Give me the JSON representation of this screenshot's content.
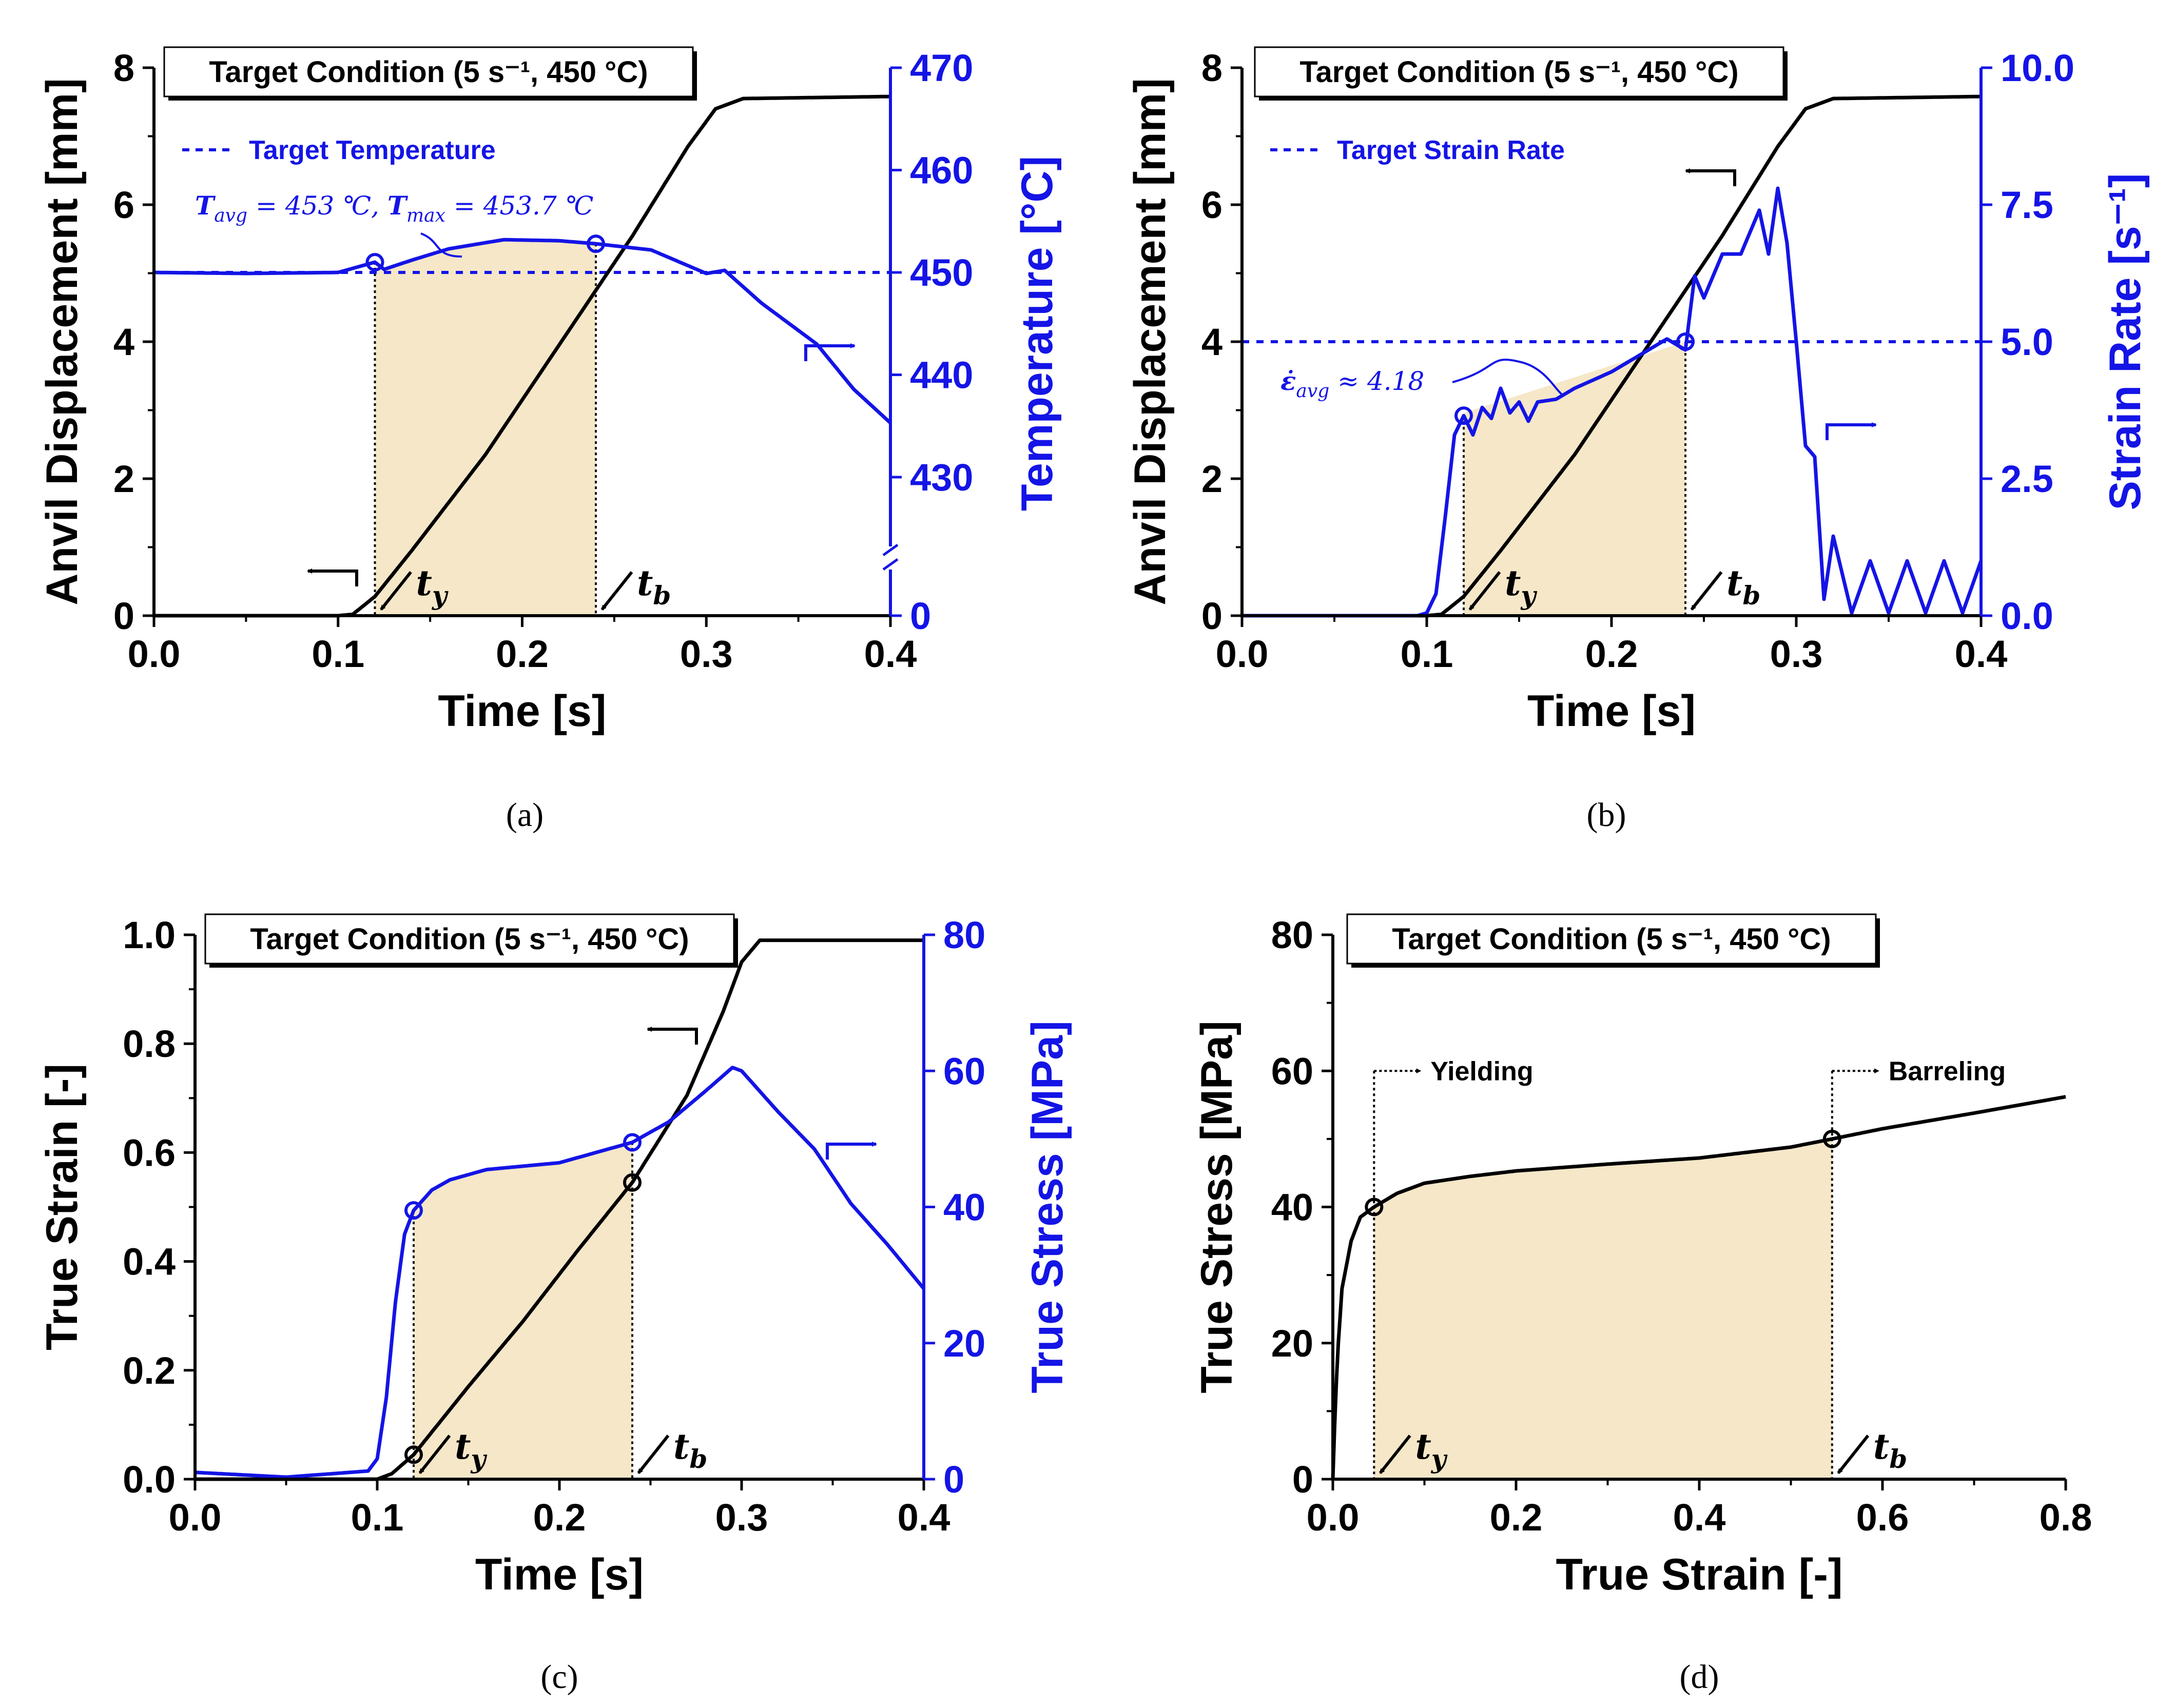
{
  "figure": {
    "colors": {
      "black": "#000000",
      "blue": "#1414e6",
      "shade": "#f5e7c8"
    }
  },
  "chart_data": [
    {
      "id": "a",
      "type": "line",
      "caption": "(a)",
      "title": "Target Condition (5 s⁻¹, 450 °C)",
      "xlabel": "Time [s]",
      "ylabel": "Anvil Displacement [mm]",
      "y2label": "Temperature [°C]",
      "xlim": [
        0,
        0.4
      ],
      "ylim": [
        0,
        8
      ],
      "xticks": [
        "0.0",
        "0.1",
        "0.2",
        "0.3",
        "0.4"
      ],
      "yticks": [
        "0",
        "2",
        "4",
        "6",
        "8"
      ],
      "y2ticks": [
        "0",
        "430",
        "440",
        "450",
        "460",
        "470"
      ],
      "y2_break": true,
      "legend": "Target Temperature",
      "target_y2": 450,
      "annotation": "T_avg = 453 ℃,  T_max = 453.7 ℃",
      "annotation_parts": {
        "t1": "T",
        "s1": "avg",
        "v1": " = 453 ℃, ",
        "t2": "T",
        "s2": "max",
        "v2": " = 453.7 ℃"
      },
      "markers": {
        "ty_label": "t",
        "ty_sub": "y",
        "tb_label": "t",
        "tb_sub": "b",
        "ty": 0.12,
        "tb": 0.24
      },
      "series": [
        {
          "name": "Anvil Displacement",
          "axis": "y",
          "color": "black",
          "x": [
            0,
            0.1,
            0.108,
            0.12,
            0.14,
            0.18,
            0.22,
            0.26,
            0.29,
            0.305,
            0.32,
            0.4
          ],
          "y": [
            0,
            0,
            0.02,
            0.28,
            0.95,
            2.35,
            3.95,
            5.55,
            6.85,
            7.4,
            7.55,
            7.58
          ]
        },
        {
          "name": "Temperature",
          "axis": "y2",
          "color": "blue",
          "x": [
            0,
            0.05,
            0.1,
            0.12,
            0.125,
            0.14,
            0.16,
            0.19,
            0.22,
            0.24,
            0.27,
            0.3,
            0.31,
            0.33,
            0.36,
            0.38,
            0.4
          ],
          "y": [
            450,
            449.9,
            450,
            451,
            450.3,
            451.2,
            452.3,
            453.2,
            453.1,
            452.8,
            452.2,
            449.9,
            450.2,
            447,
            443,
            438.6,
            435.3
          ]
        }
      ]
    },
    {
      "id": "b",
      "type": "line",
      "caption": "(b)",
      "title": "Target Condition (5 s⁻¹, 450 °C)",
      "xlabel": "Time [s]",
      "ylabel": "Anvil Displacement [mm]",
      "y2label": "Strain Rate [s⁻¹]",
      "xlim": [
        0,
        0.4
      ],
      "ylim": [
        0,
        8
      ],
      "y2lim": [
        0,
        10
      ],
      "xticks": [
        "0.0",
        "0.1",
        "0.2",
        "0.3",
        "0.4"
      ],
      "yticks": [
        "0",
        "2",
        "4",
        "6",
        "8"
      ],
      "y2ticks": [
        "0.0",
        "2.5",
        "5.0",
        "7.5",
        "10.0"
      ],
      "legend": "Target Strain Rate",
      "target_y2": 5.0,
      "annotation": "ε̇_avg ≈ 4.18",
      "annotation_parts": {
        "t1": "ε̇",
        "s1": "avg",
        "v1": " ≈ 4.18"
      },
      "markers": {
        "ty_label": "t",
        "ty_sub": "y",
        "tb_label": "t",
        "tb_sub": "b",
        "ty": 0.12,
        "tb": 0.24
      },
      "series": [
        {
          "name": "Anvil Displacement",
          "axis": "y",
          "color": "black",
          "x": [
            0,
            0.1,
            0.108,
            0.12,
            0.14,
            0.18,
            0.22,
            0.26,
            0.29,
            0.305,
            0.32,
            0.4
          ],
          "y": [
            0,
            0,
            0.02,
            0.28,
            0.95,
            2.35,
            3.95,
            5.55,
            6.85,
            7.4,
            7.55,
            7.58
          ]
        },
        {
          "name": "Strain Rate",
          "axis": "y2",
          "color": "blue",
          "x": [
            0,
            0.095,
            0.1,
            0.105,
            0.11,
            0.115,
            0.12,
            0.125,
            0.13,
            0.135,
            0.14,
            0.145,
            0.15,
            0.155,
            0.16,
            0.17,
            0.18,
            0.19,
            0.2,
            0.21,
            0.22,
            0.23,
            0.24,
            0.245,
            0.25,
            0.26,
            0.27,
            0.28,
            0.285,
            0.29,
            0.295,
            0.3,
            0.305,
            0.31,
            0.315,
            0.32,
            0.33,
            0.34,
            0.35,
            0.36,
            0.37,
            0.38,
            0.39,
            0.4
          ],
          "y": [
            0,
            0,
            0.05,
            0.4,
            1.8,
            3.3,
            3.65,
            3.3,
            3.8,
            3.6,
            4.15,
            3.7,
            3.9,
            3.55,
            3.9,
            3.95,
            4.15,
            4.3,
            4.45,
            4.65,
            4.85,
            5.05,
            4.85,
            6.2,
            5.8,
            6.6,
            6.6,
            7.4,
            6.6,
            7.8,
            6.8,
            5.0,
            3.1,
            2.9,
            0.3,
            1.45,
            0.05,
            1.0,
            0.05,
            1.0,
            0.05,
            1.0,
            0.05,
            1.0
          ]
        }
      ]
    },
    {
      "id": "c",
      "type": "line",
      "caption": "(c)",
      "title": "Target Condition (5 s⁻¹, 450 °C)",
      "xlabel": "Time [s]",
      "ylabel": "True Strain [-]",
      "y2label": "True Stress [MPa]",
      "xlim": [
        0,
        0.4
      ],
      "ylim": [
        0,
        1.0
      ],
      "y2lim": [
        0,
        80
      ],
      "xticks": [
        "0.0",
        "0.1",
        "0.2",
        "0.3",
        "0.4"
      ],
      "yticks": [
        "0.0",
        "0.2",
        "0.4",
        "0.6",
        "0.8",
        "1.0"
      ],
      "y2ticks": [
        "0",
        "20",
        "40",
        "60",
        "80"
      ],
      "markers": {
        "ty_label": "t",
        "ty_sub": "y",
        "tb_label": "t",
        "tb_sub": "b",
        "ty": 0.12,
        "tb": 0.24
      },
      "series": [
        {
          "name": "True Strain",
          "axis": "y",
          "color": "black",
          "x": [
            0,
            0.1,
            0.108,
            0.12,
            0.15,
            0.18,
            0.21,
            0.24,
            0.27,
            0.29,
            0.3,
            0.31,
            0.4
          ],
          "y": [
            0,
            0,
            0.01,
            0.045,
            0.17,
            0.29,
            0.42,
            0.545,
            0.705,
            0.86,
            0.95,
            0.99,
            0.99
          ]
        },
        {
          "name": "True Stress",
          "axis": "y2",
          "color": "blue",
          "x": [
            0,
            0.05,
            0.095,
            0.1,
            0.105,
            0.11,
            0.115,
            0.12,
            0.13,
            0.14,
            0.16,
            0.2,
            0.24,
            0.26,
            0.28,
            0.295,
            0.3,
            0.32,
            0.34,
            0.36,
            0.38,
            0.4
          ],
          "y": [
            1,
            0.3,
            1.2,
            3,
            12,
            26,
            36,
            39.5,
            42.5,
            44,
            45.5,
            46.5,
            49.5,
            52.5,
            57,
            60.5,
            60,
            54,
            48.5,
            40.5,
            34.5,
            28
          ]
        }
      ]
    },
    {
      "id": "d",
      "type": "line",
      "caption": "(d)",
      "title": "Target Condition (5 s⁻¹, 450 °C)",
      "xlabel": "True Strain [-]",
      "ylabel": "True Stress [MPa]",
      "xlim": [
        0,
        0.8
      ],
      "ylim": [
        0,
        80
      ],
      "xticks": [
        "0.0",
        "0.2",
        "0.4",
        "0.6",
        "0.8"
      ],
      "yticks": [
        "0",
        "20",
        "40",
        "60",
        "80"
      ],
      "annotations": {
        "yielding": "Yielding",
        "barreling": "Barreling"
      },
      "markers": {
        "ty_label": "t",
        "ty_sub": "y",
        "tb_label": "t",
        "tb_sub": "b",
        "ty": 0.045,
        "tb": 0.545
      },
      "series": [
        {
          "name": "True Stress vs True Strain",
          "axis": "y",
          "color": "black",
          "x": [
            0,
            0.002,
            0.005,
            0.01,
            0.02,
            0.03,
            0.045,
            0.07,
            0.1,
            0.15,
            0.2,
            0.3,
            0.4,
            0.5,
            0.545,
            0.6,
            0.7,
            0.8
          ],
          "y": [
            0,
            8,
            18,
            28,
            35,
            38.5,
            40,
            42,
            43.5,
            44.5,
            45.3,
            46.3,
            47.2,
            48.8,
            50,
            51.5,
            53.8,
            56.2
          ]
        }
      ]
    }
  ]
}
